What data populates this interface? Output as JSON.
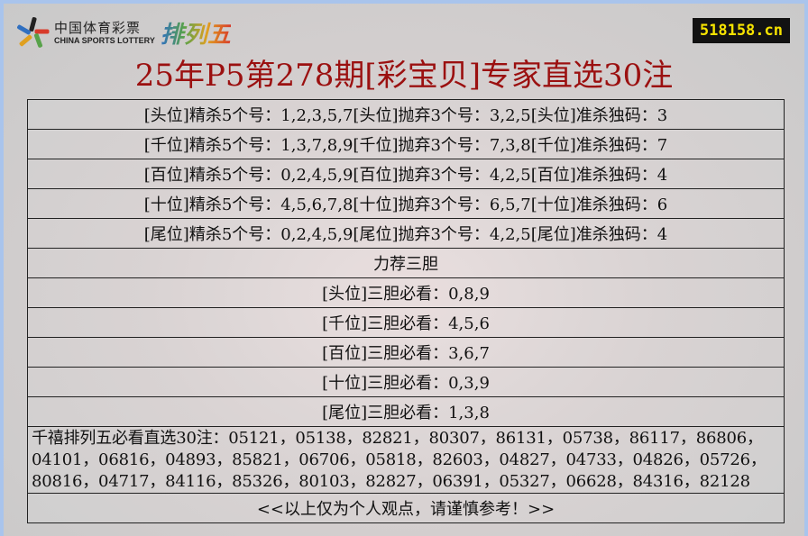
{
  "logo": {
    "cn": "中国体育彩票",
    "en": "CHINA SPORTS LOTTERY",
    "p5": "排列五"
  },
  "site_badge": "518158.cn",
  "title": "25年P5第278期[彩宝贝]专家直选30注",
  "kill_rows": [
    "[头位]精杀5个号：1,2,3,5,7[头位]抛弃3个号：3,2,5[头位]准杀独码：3",
    "[千位]精杀5个号：1,3,7,8,9[千位]抛弃3个号：7,3,8[千位]准杀独码：7",
    "[百位]精杀5个号：0,2,4,5,9[百位]抛弃3个号：4,2,5[百位]准杀独码：4",
    "[十位]精杀5个号：4,5,6,7,8[十位]抛弃3个号：6,5,7[十位]准杀独码：6",
    "[尾位]精杀5个号：0,2,4,5,9[尾位]抛弃3个号：4,2,5[尾位]准杀独码：4"
  ],
  "section_heading": "力荐三胆",
  "dan_rows": [
    "[头位]三胆必看：0,8,9",
    "[千位]三胆必看：4,5,6",
    "[百位]三胆必看：3,6,7",
    "[十位]三胆必看：0,3,9",
    "[尾位]三胆必看：1,3,8"
  ],
  "picks": "千禧排列五必看直选30注：05121，05138，82821，80307，86131，05738，86117，86806，04101，06816，04893，85821，06706，05818，82603，04827，04733，04826，05726，80816，04717，84116，85326，80103，82827，06391，05327，06628，84316，82128",
  "footer": "<<以上仅为个人观点，请谨慎参考！>>",
  "colors": {
    "title": "#9b1010",
    "badge_bg": "#121212",
    "badge_text": "#f6e300",
    "frame": "#a9c4ec"
  }
}
